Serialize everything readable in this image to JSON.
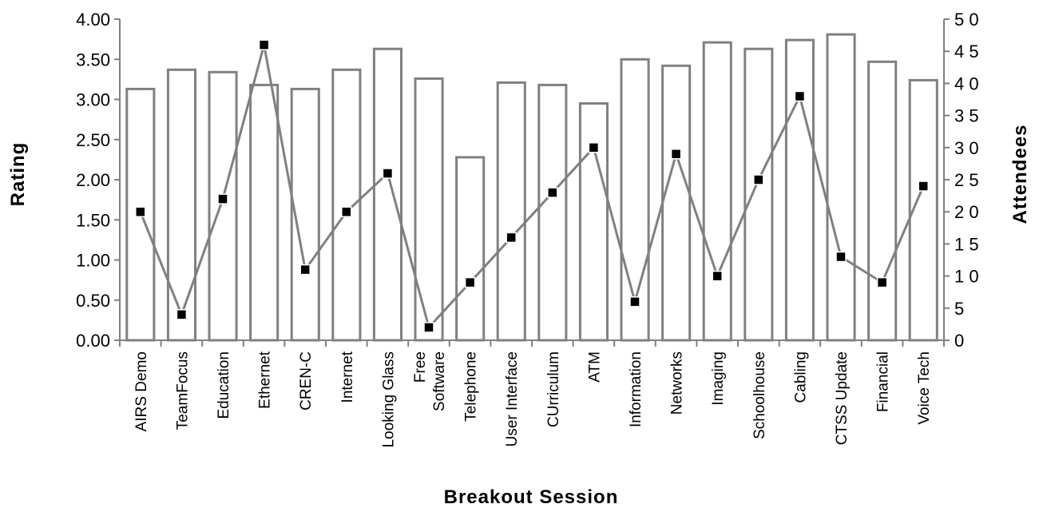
{
  "chart_data": {
    "type": "bar",
    "xlabel": "Breakout Session",
    "ylabel": "Rating",
    "y2label": "Attendees",
    "ylim": [
      0,
      4
    ],
    "y2lim": [
      0,
      50
    ],
    "yticks": [
      "0.00",
      "0.50",
      "1.00",
      "1.50",
      "2.00",
      "2.50",
      "3.00",
      "3.50",
      "4.00"
    ],
    "y2ticks": [
      "0",
      "5",
      "10",
      "15",
      "20",
      "25",
      "30",
      "35",
      "40",
      "45",
      "50"
    ],
    "categories": [
      [
        "AIRS Demo"
      ],
      [
        "TeamFocus"
      ],
      [
        "Education"
      ],
      [
        "Ethernet"
      ],
      [
        "CREN-C"
      ],
      [
        "Internet"
      ],
      [
        "Looking Glass"
      ],
      [
        "Free",
        "Software"
      ],
      [
        "Telephone"
      ],
      [
        "User Interface"
      ],
      [
        "CUrriculum"
      ],
      [
        "ATM"
      ],
      [
        "Information"
      ],
      [
        "Networks"
      ],
      [
        "Imaging"
      ],
      [
        "Schoolhouse"
      ],
      [
        "Cabling"
      ],
      [
        "CTSS  Update"
      ],
      [
        "Financial"
      ],
      [
        "Voice Tech"
      ]
    ],
    "series": [
      {
        "type": "bar",
        "axis": "left",
        "values": [
          3.13,
          3.37,
          3.34,
          3.18,
          3.13,
          3.37,
          3.63,
          3.26,
          2.28,
          3.21,
          3.18,
          2.95,
          3.5,
          3.42,
          3.71,
          3.63,
          3.74,
          3.81,
          3.47,
          3.24
        ],
        "fill": "#ffffff",
        "stroke": "#808080"
      },
      {
        "type": "line",
        "axis": "right",
        "values": [
          20,
          4,
          22,
          46,
          11,
          20,
          26,
          2,
          9,
          16,
          23,
          30,
          6,
          29,
          10,
          25,
          38,
          13,
          9,
          24
        ],
        "line_color": "#808080",
        "marker_color": "#000000"
      }
    ]
  }
}
